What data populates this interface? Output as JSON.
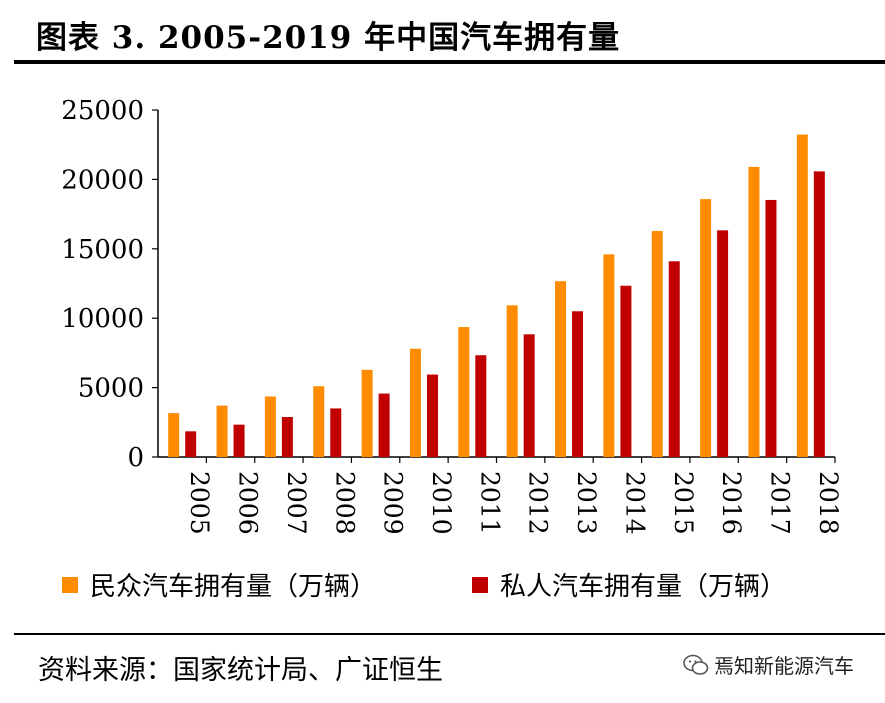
{
  "header": {
    "title": "图表 3. 2005-2019 年中国汽车拥有量"
  },
  "footer": {
    "source": "资料来源：国家统计局、广证恒生",
    "watermark": "焉知新能源汽车"
  },
  "colors": {
    "series_1": "#FF8C00",
    "series_2": "#C00000"
  },
  "chart_data": {
    "type": "bar",
    "title": "",
    "xlabel": "",
    "ylabel": "",
    "ylim": [
      0,
      25000
    ],
    "yticks": [
      "0",
      "5000",
      "10000",
      "15000",
      "20000",
      "25000"
    ],
    "categories": [
      "2005",
      "2006",
      "2007",
      "2008",
      "2009",
      "2010",
      "2011",
      "2012",
      "2013",
      "2014",
      "2015",
      "2016",
      "2017",
      "2018"
    ],
    "series": [
      {
        "name": "民众汽车拥有量（万辆）",
        "values": [
          3160,
          3700,
          4360,
          5100,
          6280,
          7800,
          9360,
          10930,
          12670,
          14600,
          16280,
          18580,
          20900,
          23230
        ]
      },
      {
        "name": "私人汽车拥有量（万辆）",
        "values": [
          1850,
          2330,
          2880,
          3500,
          4570,
          5940,
          7330,
          8840,
          10500,
          12340,
          14100,
          16330,
          18520,
          20580
        ]
      }
    ],
    "legend": "bottom",
    "grid": false
  }
}
